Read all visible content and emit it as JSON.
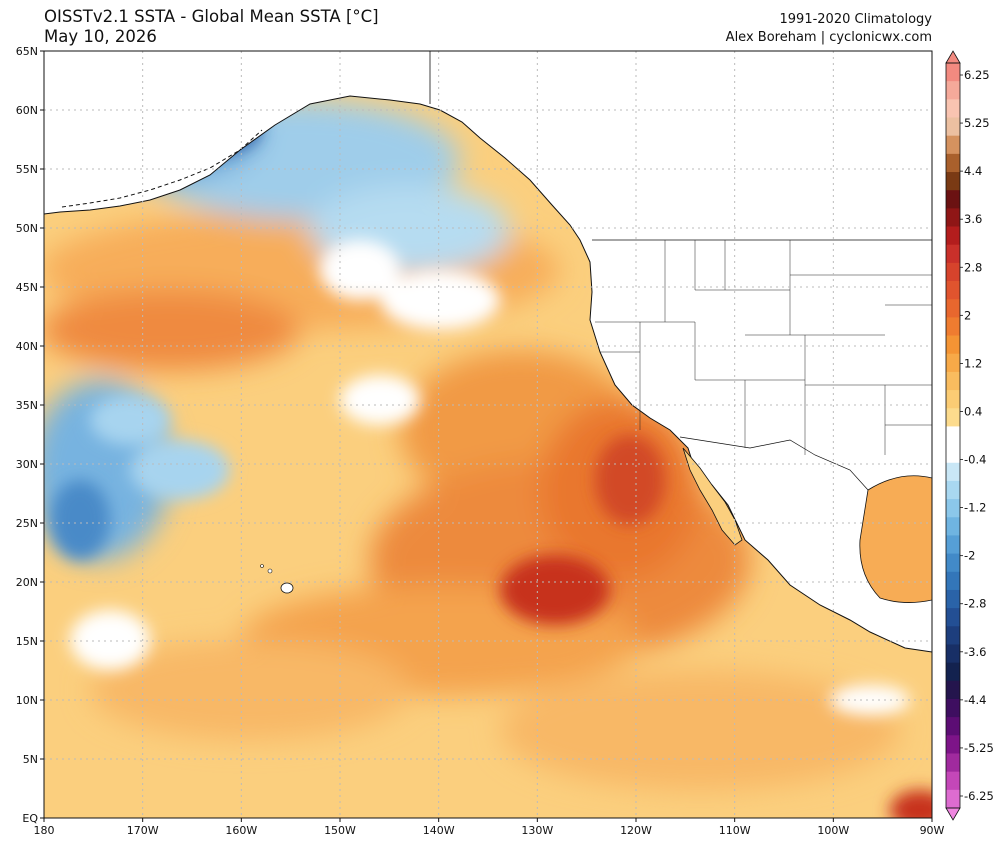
{
  "header": {
    "title": "OISSTv2.1 SSTA - Global Mean SSTA [°C]",
    "date": "May 10, 2026",
    "climatology": "1991-2020 Climatology",
    "credit": "Alex Boreham | cyclonicwx.com"
  },
  "map": {
    "lon_range": [
      -180,
      -90
    ],
    "lat_range": [
      0,
      65
    ],
    "lon_ticks": [
      {
        "value": -180,
        "label": "180"
      },
      {
        "value": -170,
        "label": "170W"
      },
      {
        "value": -160,
        "label": "160W"
      },
      {
        "value": -150,
        "label": "150W"
      },
      {
        "value": -140,
        "label": "140W"
      },
      {
        "value": -130,
        "label": "130W"
      },
      {
        "value": -120,
        "label": "120W"
      },
      {
        "value": -110,
        "label": "110W"
      },
      {
        "value": -100,
        "label": "100W"
      },
      {
        "value": -90,
        "label": "90W"
      }
    ],
    "lat_ticks": [
      {
        "value": 0,
        "label": "EQ"
      },
      {
        "value": 5,
        "label": "5N"
      },
      {
        "value": 10,
        "label": "10N"
      },
      {
        "value": 15,
        "label": "15N"
      },
      {
        "value": 20,
        "label": "20N"
      },
      {
        "value": 25,
        "label": "25N"
      },
      {
        "value": 30,
        "label": "30N"
      },
      {
        "value": 35,
        "label": "35N"
      },
      {
        "value": 40,
        "label": "40N"
      },
      {
        "value": 45,
        "label": "45N"
      },
      {
        "value": 50,
        "label": "50N"
      },
      {
        "value": 55,
        "label": "55N"
      },
      {
        "value": 60,
        "label": "60N"
      },
      {
        "value": 65,
        "label": "65N"
      }
    ],
    "colors": {
      "land": "#ffffff",
      "coast": "#111111",
      "gridline": "#bbbbbb"
    }
  },
  "colorbar": {
    "labels": [
      "6.25",
      "5.25",
      "4.4",
      "3.6",
      "2.8",
      "2",
      "1.2",
      "0.4",
      "-0.4",
      "-1.2",
      "-2",
      "-2.8",
      "-3.6",
      "-4.4",
      "-5.25",
      "-6.25"
    ],
    "colors": [
      "#f28a80",
      "#f5a99a",
      "#f9c4b1",
      "#ecc0a1",
      "#d5925f",
      "#a9602c",
      "#7a3a14",
      "#6b1212",
      "#8f1616",
      "#b31d1d",
      "#c9302a",
      "#d6432c",
      "#e0542e",
      "#e8672e",
      "#ef7c30",
      "#f49434",
      "#f7a948",
      "#f9bc5f",
      "#fbcc74",
      "#fcdb8d",
      "#ffffff",
      "#ffffff",
      "#c9e7f6",
      "#a9d8f1",
      "#8bc7ea",
      "#6fb4e1",
      "#569fd6",
      "#428ac8",
      "#3376b9",
      "#2a63a8",
      "#234f94",
      "#1d3e7d",
      "#182f66",
      "#13224f",
      "#24154d",
      "#3e0e60",
      "#5c0d74",
      "#7d1488",
      "#a02a9e",
      "#c447b8",
      "#dd6cd0"
    ]
  }
}
